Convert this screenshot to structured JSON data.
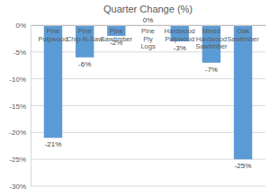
{
  "chart_data": {
    "type": "bar",
    "title": "Quarter Change (%)",
    "categories": [
      "Pine Pulpwood",
      "Pine Chip-N-Saw",
      "Pine Sawtimber",
      "Pine Ply Logs",
      "Hardwood Pulpwood",
      "Mixed Hardwood Sawtimber",
      "Oak Sawtimber"
    ],
    "values": [
      -21,
      -6,
      -2,
      0,
      -3,
      -7,
      -25
    ],
    "value_labels": [
      "-21%",
      "-6%",
      "-2%",
      "0%",
      "-3%",
      "-7%",
      "-25%"
    ],
    "color": "#5b9bd5",
    "ylim": [
      -30,
      0
    ],
    "yticks": [
      {
        "value": 0,
        "label": "0%"
      },
      {
        "value": -5,
        "label": "-5%"
      },
      {
        "value": -10,
        "label": "-10%"
      },
      {
        "value": -15,
        "label": "-15%"
      },
      {
        "value": -20,
        "label": "-20%"
      },
      {
        "value": -25,
        "label": "-25%"
      },
      {
        "value": -30,
        "label": "-30%"
      }
    ],
    "grid": true,
    "data_labels": true
  }
}
